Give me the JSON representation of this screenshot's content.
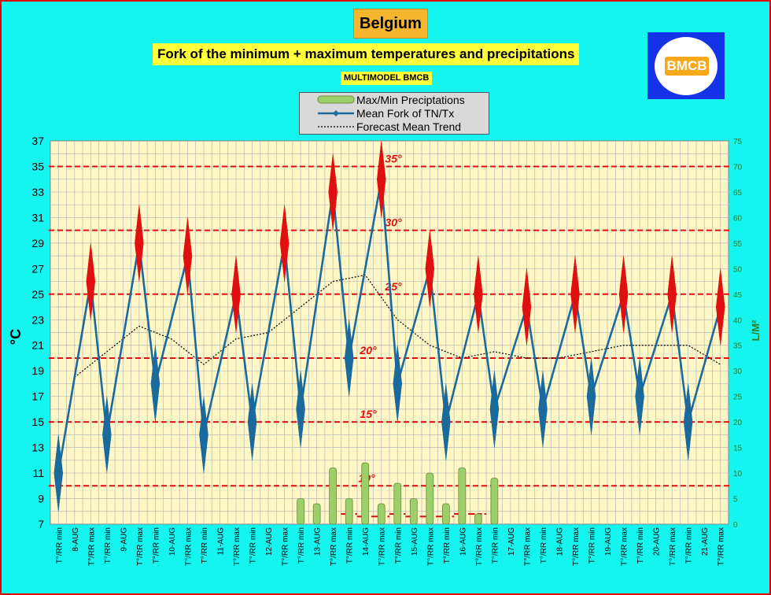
{
  "title": "Belgium",
  "subtitle": "Fork of the minimum + maximum temperatures and precipitations",
  "subtitle2": "MULTIMODEL BMCB",
  "logo_text": "BMCB",
  "legend": [
    "Max/Min Preciptations",
    "Mean Fork of TN/Tx",
    "Forecast Mean Trend"
  ],
  "colors": {
    "background": "#14f5f0",
    "plot": "#fff8c6",
    "temp_line": "#1a6a9e",
    "min_marker": "#1a6a9e",
    "max_marker": "#e01010",
    "threshold": "#e01010",
    "precip": "#9ccf6a"
  },
  "chart_data": {
    "type": "line",
    "ylabel": "°C",
    "y2label": "L/M²",
    "ylim": [
      7,
      37
    ],
    "y2lim": [
      0,
      75
    ],
    "yticks": [
      7,
      9,
      11,
      13,
      15,
      17,
      19,
      21,
      23,
      25,
      27,
      29,
      31,
      33,
      35,
      37
    ],
    "y2ticks": [
      0,
      5,
      10,
      15,
      20,
      25,
      30,
      35,
      40,
      45,
      50,
      55,
      60,
      65,
      70,
      75
    ],
    "x_labels": [
      "T°/RR min",
      "8-AUG",
      "T°/RR max",
      "T°/RR min",
      "9-AUG",
      "T°/RR max",
      "T°/RR min",
      "10-AUG",
      "T°/RR max",
      "T°/RR min",
      "11-AUG",
      "T°/RR max",
      "T°/RR min",
      "12-AUG",
      "T°/RR max",
      "T°/RR min",
      "13-AUG",
      "T°/RR max",
      "T°/RR min",
      "14-AUG",
      "T°/RR max",
      "T°/RR min",
      "15-AUG",
      "T°/RR max",
      "T°/RR min",
      "16-AUG",
      "T°/RR max",
      "T°/RR min",
      "17-AUG",
      "T°/RR max",
      "T°/RR min",
      "18-AUG",
      "T°/RR max",
      "T°/RR min",
      "19-AUG",
      "T°/RR max",
      "T°/RR min",
      "20-AUG",
      "T°/RR max",
      "T°/RR min",
      "21-AUG",
      "T°/RR max"
    ],
    "thresholds": [
      {
        "label": "35°",
        "value": 35
      },
      {
        "label": "30°",
        "value": 30
      },
      {
        "label": "25°",
        "value": 25
      },
      {
        "label": "20°",
        "value": 20
      },
      {
        "label": "15°",
        "value": 15
      },
      {
        "label": "10°",
        "value": 10
      }
    ],
    "series": [
      {
        "name": "Mean Fork of TN/Tx",
        "values": [
          11,
          26,
          14,
          29,
          18,
          28,
          14,
          25,
          15,
          29,
          16,
          33,
          20,
          34,
          18,
          27,
          15,
          25,
          16,
          24,
          16,
          25,
          17,
          25,
          17,
          25,
          15,
          24
        ],
        "ranges": [
          [
            8,
            14
          ],
          [
            23,
            29
          ],
          [
            11,
            17
          ],
          [
            26,
            32
          ],
          [
            15,
            21
          ],
          [
            25,
            31
          ],
          [
            11,
            17
          ],
          [
            22,
            28
          ],
          [
            12,
            18
          ],
          [
            26,
            32
          ],
          [
            13,
            19
          ],
          [
            30,
            36
          ],
          [
            17,
            23
          ],
          [
            31,
            37
          ],
          [
            15,
            21
          ],
          [
            24,
            30
          ],
          [
            12,
            18
          ],
          [
            22,
            28
          ],
          [
            13,
            19
          ],
          [
            21,
            27
          ],
          [
            13,
            19
          ],
          [
            22,
            28
          ],
          [
            14,
            20
          ],
          [
            22,
            28
          ],
          [
            14,
            20
          ],
          [
            22,
            28
          ],
          [
            12,
            18
          ],
          [
            21,
            27
          ]
        ]
      },
      {
        "name": "Forecast Mean Trend",
        "x": [
          1,
          3,
          5,
          7,
          9,
          11,
          13,
          15,
          17,
          19,
          21,
          23,
          25,
          27,
          29,
          31,
          33,
          35,
          37,
          39,
          41
        ],
        "values": [
          18.5,
          20.5,
          22.5,
          21.5,
          19.5,
          21.5,
          22,
          24,
          26,
          26.5,
          23,
          21,
          20,
          20.5,
          20,
          20,
          20.5,
          21,
          21,
          21,
          19.5
        ]
      },
      {
        "name": "Max/Min Preciptations",
        "values": [
          0,
          0,
          0,
          0,
          0,
          0,
          0,
          0,
          0,
          0,
          0,
          0,
          0,
          0,
          0,
          5,
          4,
          11,
          5,
          12,
          4,
          8,
          5,
          10,
          4,
          11,
          2,
          9
        ],
        "dashes": [
          0,
          0,
          0,
          0,
          0,
          0,
          0,
          0,
          0,
          0,
          0,
          0,
          0,
          0,
          0,
          0,
          0,
          0,
          7.8,
          7.6,
          7.6,
          7.8,
          7.6,
          7.6,
          7.6,
          7.8,
          7.8,
          0
        ]
      }
    ]
  }
}
